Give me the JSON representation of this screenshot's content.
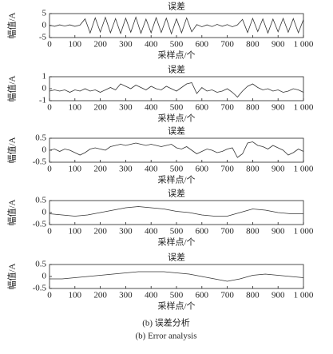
{
  "chart_data": [
    {
      "type": "line",
      "title": "误差",
      "xlabel": "采样点/个",
      "ylabel": "幅值/A",
      "color": "#333333",
      "x": [
        0,
        20,
        40,
        60,
        80,
        100,
        120,
        140,
        160,
        180,
        200,
        220,
        240,
        260,
        280,
        300,
        320,
        340,
        360,
        380,
        400,
        420,
        440,
        460,
        480,
        500,
        520,
        540,
        560,
        580,
        600,
        620,
        640,
        660,
        680,
        700,
        720,
        740,
        760,
        780,
        800,
        820,
        840,
        860,
        880,
        900,
        920,
        940,
        960,
        980,
        1000
      ],
      "values": [
        0.2,
        -0.3,
        0.3,
        -0.2,
        0.3,
        -0.3,
        0.2,
        2.8,
        -3.1,
        3.2,
        -2.7,
        3.4,
        -3.0,
        2.9,
        -3.3,
        3.1,
        -2.8,
        3.5,
        -3.2,
        2.7,
        -3.0,
        3.3,
        -2.9,
        3.1,
        -3.4,
        2.8,
        -3.0,
        3.2,
        -2.6,
        0.4,
        -0.5,
        0.3,
        -0.4,
        0.5,
        -0.3,
        0.4,
        -0.5,
        0.3,
        2.6,
        -2.9,
        3.0,
        -2.5,
        2.8,
        -3.1,
        2.7,
        -2.6,
        3.0,
        -2.8,
        2.9,
        -3.0,
        2.5
      ],
      "xlim": [
        0,
        1000
      ],
      "ylim": [
        -5,
        5
      ],
      "yticks": [
        -5,
        0,
        5
      ],
      "xticks": [
        0,
        100,
        200,
        300,
        400,
        500,
        600,
        700,
        800,
        900,
        {
          "value": 1000,
          "label": "1 000"
        }
      ]
    },
    {
      "type": "line",
      "title": "误差",
      "xlabel": "采样点/个",
      "ylabel": "幅值/A",
      "color": "#333333",
      "x": [
        0,
        20,
        40,
        60,
        80,
        100,
        120,
        140,
        160,
        180,
        200,
        220,
        240,
        260,
        280,
        300,
        320,
        340,
        360,
        380,
        400,
        420,
        440,
        460,
        480,
        500,
        520,
        540,
        560,
        580,
        600,
        620,
        640,
        660,
        680,
        700,
        720,
        740,
        760,
        780,
        800,
        820,
        840,
        860,
        880,
        900,
        920,
        940,
        960,
        980,
        1000
      ],
      "values": [
        -0.2,
        -0.1,
        -0.2,
        -0.1,
        -0.3,
        -0.1,
        -0.2,
        0,
        -0.2,
        -0.1,
        -0.3,
        -0.1,
        0.1,
        -0.1,
        0.4,
        0.2,
        0,
        0.3,
        0.1,
        -0.1,
        0.2,
        0,
        -0.1,
        0.2,
        0,
        -0.2,
        0.1,
        0.4,
        0.5,
        -0.4,
        0.1,
        -0.2,
        -0.1,
        -0.3,
        -0.2,
        0,
        -0.3,
        -0.7,
        -0.2,
        0.2,
        0.4,
        0.1,
        -0.1,
        0,
        -0.2,
        -0.1,
        -0.3,
        -0.2,
        0,
        -0.1,
        -0.3
      ],
      "xlim": [
        0,
        1000
      ],
      "ylim": [
        -1,
        1
      ],
      "yticks": [
        -1,
        0,
        1
      ],
      "xticks": [
        0,
        100,
        200,
        300,
        400,
        500,
        600,
        700,
        800,
        900,
        {
          "value": 1000,
          "label": "1 000"
        }
      ]
    },
    {
      "type": "line",
      "title": "误差",
      "xlabel": "采样点/个",
      "ylabel": "幅值/A",
      "color": "#333333",
      "x": [
        0,
        20,
        40,
        60,
        80,
        100,
        120,
        140,
        160,
        180,
        200,
        220,
        240,
        260,
        280,
        300,
        320,
        340,
        360,
        380,
        400,
        420,
        440,
        460,
        480,
        500,
        520,
        540,
        560,
        580,
        600,
        620,
        640,
        660,
        680,
        700,
        720,
        740,
        760,
        780,
        800,
        820,
        840,
        860,
        880,
        900,
        920,
        940,
        960,
        980,
        1000
      ],
      "values": [
        0,
        0.05,
        -0.05,
        0.05,
        0,
        -0.1,
        -0.2,
        -0.1,
        0.05,
        0.1,
        0.05,
        0,
        0.15,
        0.2,
        0.25,
        0.2,
        0.25,
        0.3,
        0.25,
        0.2,
        0.25,
        0.2,
        0.15,
        0.2,
        0.25,
        0.1,
        0.05,
        0.15,
        0,
        -0.15,
        -0.05,
        0.05,
        0,
        -0.1,
        -0.05,
        0.05,
        0.1,
        -0.3,
        -0.15,
        0.3,
        0.35,
        0.2,
        0.15,
        0.05,
        0.2,
        0.1,
        0,
        -0.2,
        -0.1,
        0.05,
        -0.05
      ],
      "xlim": [
        0,
        1000
      ],
      "ylim": [
        -0.5,
        0.5
      ],
      "yticks": [
        -0.5,
        0,
        0.5
      ],
      "xticks": [
        0,
        100,
        200,
        300,
        400,
        500,
        600,
        700,
        800,
        900,
        {
          "value": 1000,
          "label": "1 000"
        }
      ]
    },
    {
      "type": "line",
      "title": "误差",
      "xlabel": "采样点/个",
      "ylabel": "幅值/A",
      "color": "#333333",
      "x": [
        0,
        50,
        100,
        150,
        200,
        250,
        300,
        350,
        400,
        450,
        500,
        550,
        600,
        650,
        700,
        750,
        800,
        850,
        900,
        950,
        1000
      ],
      "values": [
        -0.05,
        -0.1,
        -0.15,
        -0.1,
        0,
        0.1,
        0.2,
        0.25,
        0.2,
        0.15,
        0.05,
        0,
        -0.1,
        -0.15,
        -0.15,
        0,
        0.15,
        0.1,
        0,
        -0.05,
        -0.05
      ],
      "xlim": [
        0,
        1000
      ],
      "ylim": [
        -0.5,
        0.5
      ],
      "yticks": [
        -0.5,
        0,
        0.5
      ],
      "xticks": [
        0,
        100,
        200,
        300,
        400,
        500,
        600,
        700,
        800,
        900,
        {
          "value": 1000,
          "label": "1 000"
        }
      ]
    },
    {
      "type": "line",
      "title": "误差",
      "xlabel": "采样点/个",
      "ylabel": "幅值/A",
      "color": "#333333",
      "x": [
        0,
        50,
        100,
        150,
        200,
        250,
        300,
        350,
        400,
        450,
        500,
        550,
        600,
        650,
        700,
        750,
        800,
        850,
        900,
        950,
        1000
      ],
      "values": [
        -0.1,
        -0.1,
        -0.05,
        0,
        0.05,
        0.1,
        0.15,
        0.2,
        0.2,
        0.2,
        0.15,
        0.1,
        0,
        -0.1,
        -0.2,
        -0.1,
        0.05,
        0.1,
        0.05,
        0,
        -0.05
      ],
      "xlim": [
        0,
        1000
      ],
      "ylim": [
        -0.5,
        0.5
      ],
      "yticks": [
        -0.5,
        0,
        0.5
      ],
      "xticks": [
        0,
        100,
        200,
        300,
        400,
        500,
        600,
        700,
        800,
        900,
        {
          "value": 1000,
          "label": "1 000"
        }
      ]
    }
  ],
  "caption": {
    "zh": "(b) 误差分析",
    "en": "(b) Error analysis"
  }
}
